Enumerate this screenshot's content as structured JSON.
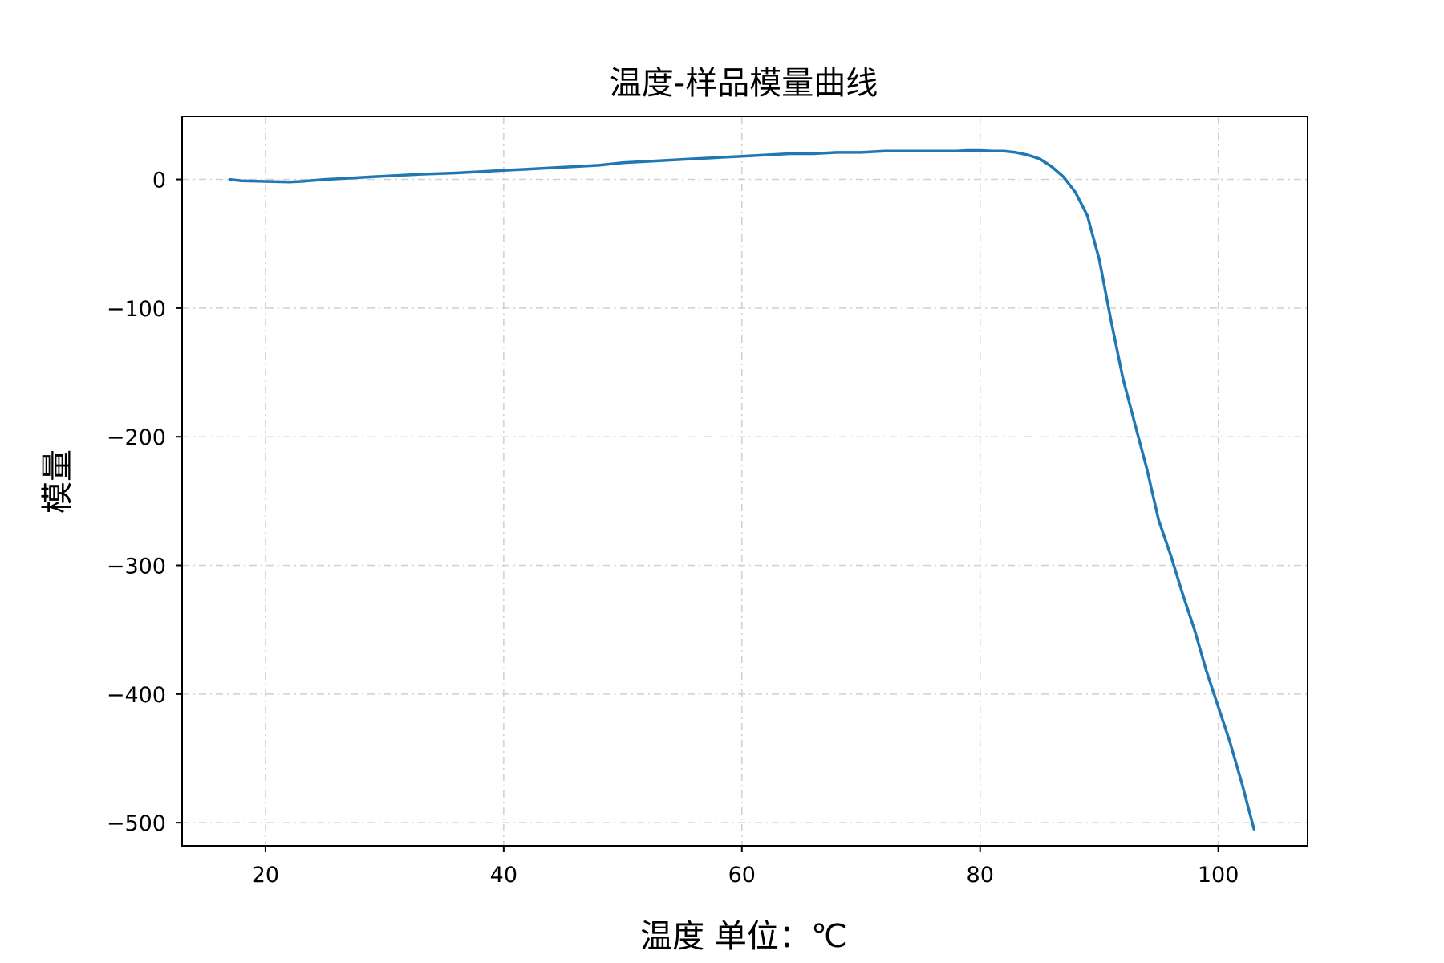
{
  "chart_data": {
    "type": "line",
    "title": "温度-样品模量曲线",
    "xlabel": "温度 单位：℃",
    "ylabel": "模量",
    "xlim": [
      13,
      107.5
    ],
    "ylim": [
      -518,
      49
    ],
    "xticks": [
      20,
      40,
      60,
      80,
      100
    ],
    "yticks": [
      0,
      -100,
      -200,
      -300,
      -400,
      -500
    ],
    "grid": true,
    "series": [
      {
        "color": "#1f77b4",
        "x": [
          17,
          18,
          20,
          22,
          23,
          25,
          27,
          29,
          31,
          33,
          36,
          38,
          40,
          42,
          44,
          46,
          48,
          50,
          52,
          54,
          56,
          58,
          60,
          62,
          64,
          66,
          68,
          70,
          72,
          74,
          76,
          78,
          79,
          80,
          81,
          82,
          83,
          84,
          85,
          86,
          87,
          88,
          89,
          90,
          91,
          92,
          93,
          94,
          95,
          96,
          97,
          98,
          99,
          100,
          101,
          102,
          103
        ],
        "y": [
          0,
          -1,
          -1.5,
          -2,
          -1.5,
          0,
          1,
          2,
          3,
          4,
          5,
          6,
          7,
          8,
          9,
          10,
          11,
          13,
          14,
          15,
          16,
          17,
          18,
          19,
          20,
          20,
          21,
          21,
          22,
          22,
          22,
          22,
          22.5,
          22.5,
          22,
          22,
          21,
          19,
          16,
          10,
          2,
          -10,
          -28,
          -62,
          -110,
          -155,
          -190,
          -225,
          -265,
          -292,
          -322,
          -350,
          -382,
          -410,
          -438,
          -470,
          -505
        ]
      }
    ]
  }
}
